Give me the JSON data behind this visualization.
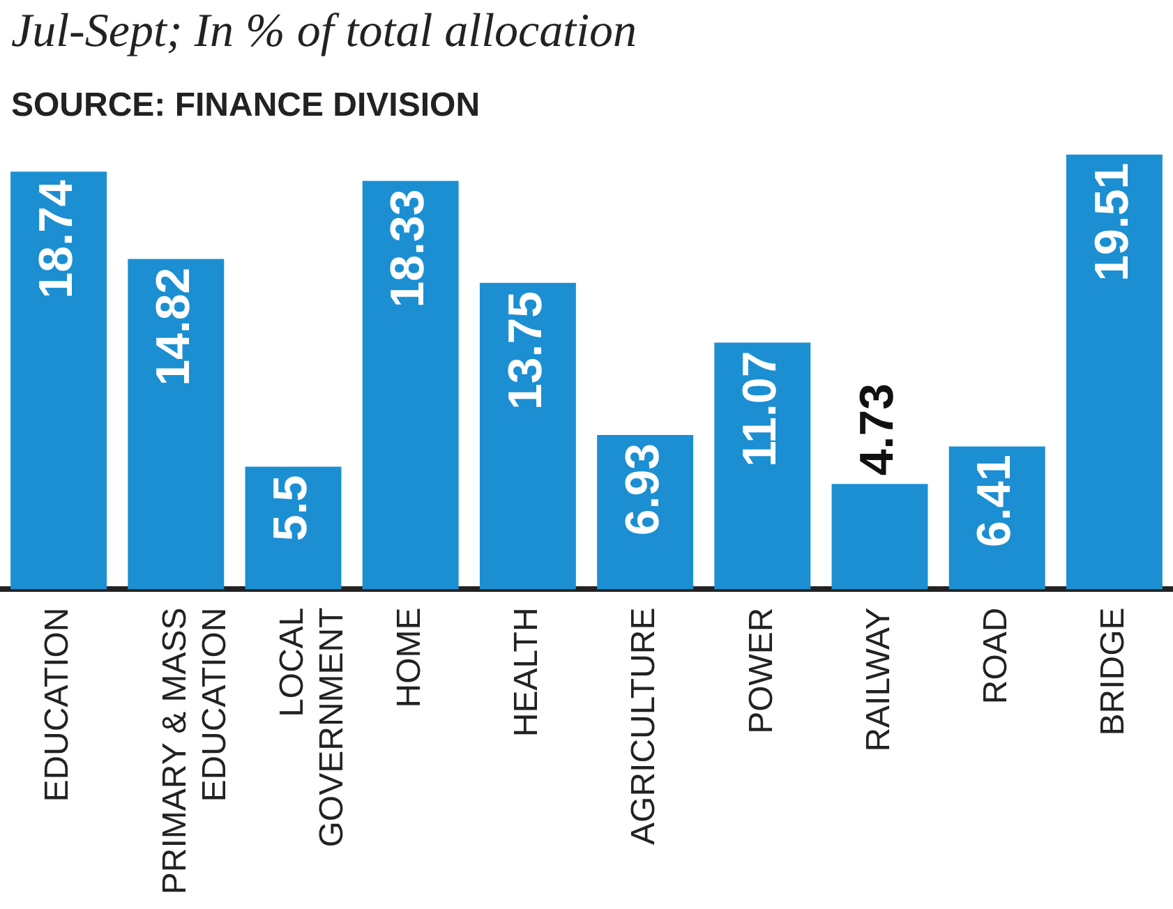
{
  "chart_data": {
    "type": "bar",
    "title": "Jul-Sept; In % of total allocation",
    "annotations": [
      "SOURCE: FINANCE DIVISION"
    ],
    "categories": [
      "EDUCATION",
      "PRIMARY & MASS EDUCATION",
      "LOCAL GOVERNMENT",
      "HOME",
      "HEALTH",
      "AGRICULTURE",
      "POWER",
      "RAILWAY",
      "ROAD",
      "BRIDGE"
    ],
    "values": [
      18.74,
      14.82,
      5.5,
      18.33,
      13.75,
      6.93,
      11.07,
      4.73,
      6.41,
      19.51
    ],
    "color": "#1b8fd2",
    "data_labels": true,
    "grid": false,
    "legend": false
  }
}
